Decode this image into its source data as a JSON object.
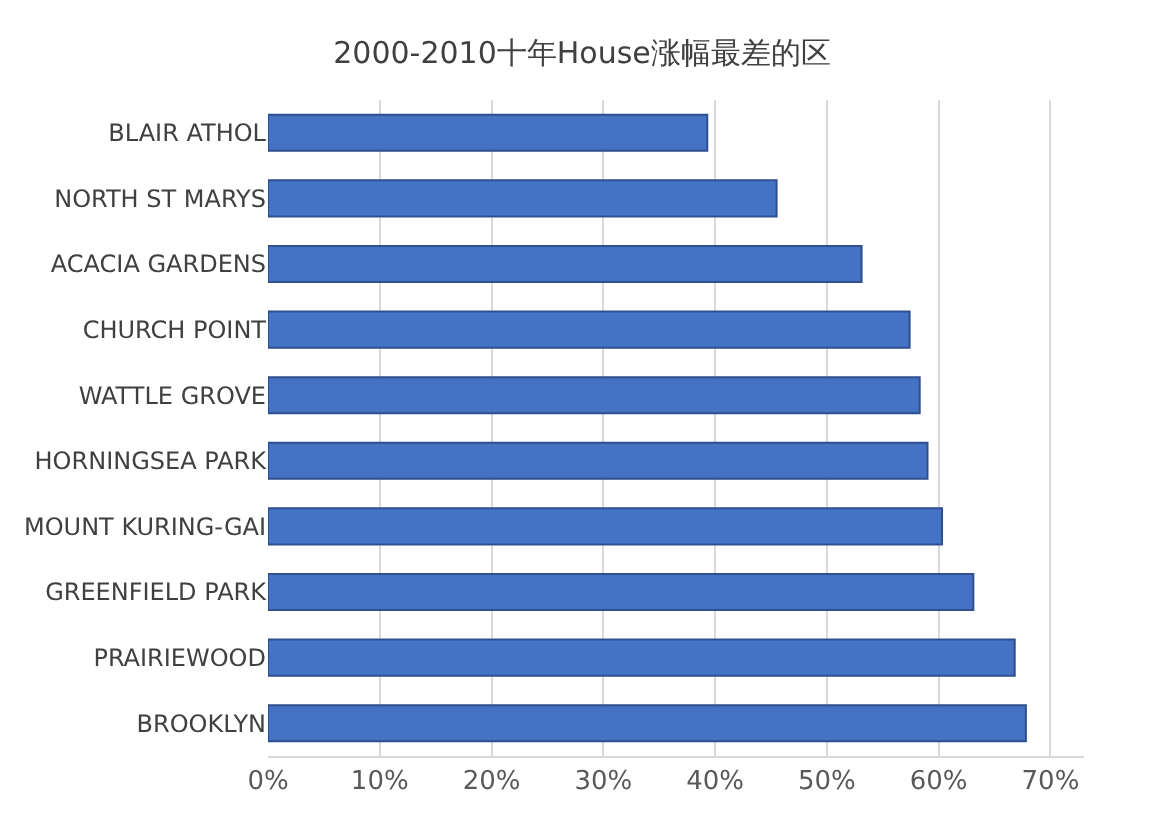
{
  "chart_data": {
    "type": "bar",
    "orientation": "horizontal",
    "title": "2000-2010十年House涨幅最差的区",
    "categories": [
      "BLAIR ATHOL",
      "NORTH ST MARYS",
      "ACACIA GARDENS",
      "CHURCH POINT",
      "WATTLE GROVE",
      "HORNINGSEA PARK",
      "MOUNT KURING-GAI",
      "GREENFIELD PARK",
      "PRAIRIEWOOD",
      "BROOKLYN"
    ],
    "values": [
      39.3,
      45.5,
      53.1,
      57.4,
      58.3,
      59.0,
      60.3,
      63.1,
      66.8,
      67.8
    ],
    "color": "#4472c4",
    "xlim": [
      0,
      73
    ],
    "xticks": [
      {
        "value": 0,
        "label": "0%"
      },
      {
        "value": 10,
        "label": "10%"
      },
      {
        "value": 20,
        "label": "20%"
      },
      {
        "value": 30,
        "label": "30%"
      },
      {
        "value": 40,
        "label": "40%"
      },
      {
        "value": 50,
        "label": "50%"
      },
      {
        "value": 60,
        "label": "60%"
      },
      {
        "value": 70,
        "label": "70%"
      }
    ],
    "grid": "x"
  }
}
